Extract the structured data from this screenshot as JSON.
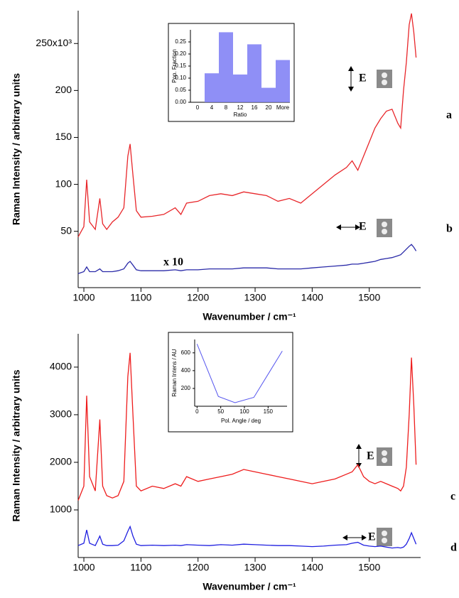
{
  "chart_data": [
    {
      "type": "line",
      "xlabel": "Wavenumber / cm⁻¹",
      "ylabel": "Raman Intensity / arbitrary units",
      "x": [
        990,
        1000,
        1005,
        1010,
        1020,
        1028,
        1033,
        1040,
        1050,
        1060,
        1070,
        1077,
        1081,
        1086,
        1092,
        1100,
        1120,
        1140,
        1160,
        1170,
        1180,
        1200,
        1220,
        1240,
        1260,
        1280,
        1300,
        1320,
        1340,
        1360,
        1380,
        1400,
        1420,
        1440,
        1460,
        1470,
        1480,
        1490,
        1500,
        1510,
        1520,
        1530,
        1540,
        1550,
        1555,
        1560,
        1565,
        1570,
        1574,
        1578,
        1582
      ],
      "series": [
        {
          "name": "a",
          "color": "#e8262a",
          "values": [
            44,
            55,
            105,
            60,
            52,
            85,
            58,
            52,
            60,
            65,
            75,
            130,
            143,
            110,
            72,
            65,
            66,
            68,
            75,
            68,
            80,
            82,
            88,
            90,
            88,
            92,
            90,
            88,
            82,
            85,
            80,
            90,
            100,
            110,
            118,
            125,
            115,
            130,
            145,
            160,
            170,
            178,
            180,
            165,
            160,
            200,
            230,
            270,
            282,
            262,
            235
          ]
        },
        {
          "name": "b",
          "color": "#2a2aa8",
          "values": [
            5,
            7,
            12,
            7,
            7,
            10,
            7,
            7,
            7,
            8,
            10,
            16,
            18,
            14,
            9,
            8,
            8,
            8,
            9,
            8,
            9,
            9,
            10,
            10,
            10,
            11,
            11,
            11,
            10,
            10,
            10,
            11,
            12,
            13,
            14,
            15,
            15,
            16,
            17,
            18,
            20,
            21,
            22,
            24,
            25,
            28,
            31,
            34,
            36,
            33,
            29
          ]
        }
      ],
      "xlim": [
        990,
        1590
      ],
      "xticks": [
        1000,
        1100,
        1200,
        1300,
        1400,
        1500
      ],
      "ylim": [
        -10,
        285
      ],
      "yticks": [
        50,
        100,
        150,
        200,
        {
          "value": 250,
          "label": "250x10³"
        }
      ],
      "annotations": [
        "E",
        "E",
        "x 10"
      ]
    },
    {
      "type": "bar",
      "xlabel": "Ratio",
      "ylabel": "Pop. Fraction",
      "color": "#7b7bf5",
      "categories": [
        "0",
        "4",
        "8",
        "12",
        "16",
        "20",
        "More"
      ],
      "values": [
        0,
        0.12,
        0.29,
        0.115,
        0.24,
        0.06,
        0.175
      ],
      "ylim": [
        0,
        0.3
      ],
      "yticks": [
        {
          "value": 0,
          "label": "0.00"
        },
        0.05,
        {
          "value": 0.1,
          "label": "0.10"
        },
        0.15,
        {
          "value": 0.2,
          "label": "0.20"
        },
        0.25
      ]
    },
    {
      "type": "line",
      "xlabel": "Wavenumber / cm⁻¹",
      "ylabel": "Raman Intensity / arbitrary units",
      "x": [
        990,
        1000,
        1005,
        1010,
        1020,
        1028,
        1033,
        1040,
        1050,
        1060,
        1070,
        1077,
        1081,
        1086,
        1092,
        1100,
        1120,
        1140,
        1160,
        1170,
        1180,
        1200,
        1220,
        1240,
        1260,
        1280,
        1300,
        1320,
        1340,
        1360,
        1380,
        1400,
        1420,
        1440,
        1460,
        1470,
        1480,
        1490,
        1500,
        1510,
        1520,
        1530,
        1540,
        1550,
        1555,
        1560,
        1565,
        1570,
        1574,
        1578,
        1582
      ],
      "series": [
        {
          "name": "c",
          "color": "#ee1c1c",
          "values": [
            1200,
            1500,
            3400,
            1700,
            1400,
            2900,
            1500,
            1300,
            1250,
            1300,
            1600,
            3800,
            4300,
            3000,
            1500,
            1400,
            1500,
            1450,
            1550,
            1500,
            1700,
            1600,
            1650,
            1700,
            1750,
            1850,
            1800,
            1750,
            1700,
            1650,
            1600,
            1550,
            1600,
            1650,
            1750,
            1800,
            1950,
            1700,
            1600,
            1550,
            1600,
            1550,
            1500,
            1450,
            1400,
            1500,
            1900,
            3000,
            4200,
            3200,
            1950
          ]
        },
        {
          "name": "d",
          "color": "#1f1fe0",
          "values": [
            250,
            300,
            580,
            300,
            250,
            450,
            280,
            250,
            250,
            260,
            350,
            550,
            650,
            450,
            280,
            250,
            260,
            250,
            260,
            250,
            270,
            260,
            250,
            270,
            260,
            280,
            270,
            260,
            250,
            250,
            240,
            230,
            240,
            260,
            270,
            300,
            320,
            260,
            240,
            230,
            240,
            220,
            200,
            210,
            200,
            220,
            280,
            400,
            520,
            400,
            280
          ]
        }
      ],
      "xlim": [
        990,
        1590
      ],
      "xticks": [
        1000,
        1100,
        1200,
        1300,
        1400,
        1500
      ],
      "ylim": [
        0,
        4700
      ],
      "yticks": [
        1000,
        2000,
        3000,
        4000
      ],
      "annotations": [
        "E",
        "E"
      ]
    },
    {
      "type": "line",
      "xlabel": "Pol. Angle / deg",
      "ylabel": "Raman Intens / AU",
      "color": "#5555ee",
      "x": [
        0,
        45,
        80,
        120,
        180
      ],
      "values": [
        700,
        110,
        40,
        100,
        620
      ],
      "xlim": [
        -5,
        190
      ],
      "xticks": [
        0,
        50,
        100,
        150
      ],
      "ylim": [
        0,
        750
      ],
      "yticks": [
        200,
        400,
        600
      ]
    }
  ]
}
